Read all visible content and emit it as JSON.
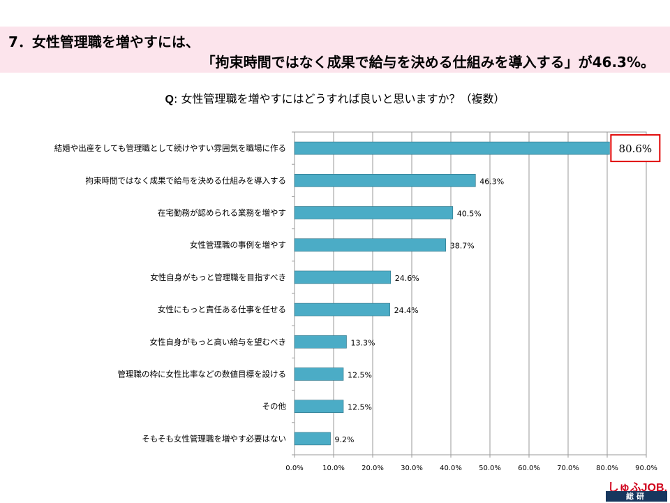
{
  "header": {
    "line1": "7．女性管理職を増やすには、",
    "line2": "「拘束時間ではなく成果で給与を決める仕組みを導入する」が46.3%。"
  },
  "question": {
    "prefix": "Q",
    "text": ": 女性管理職を増やすにはどうすれば良いと思いますか？（複数）"
  },
  "chart_data": {
    "type": "bar",
    "orientation": "horizontal",
    "categories": [
      "結婚や出産をしても管理職として続けやすい雰囲気を職場に作る",
      "拘束時間ではなく成果で給与を決める仕組みを導入する",
      "在宅勤務が認められる業務を増やす",
      "女性管理職の事例を増やす",
      "女性自身がもっと管理職を目指すべき",
      "女性にもっと責任ある仕事を任せる",
      "女性自身がもっと高い給与を望むべき",
      "管理職の枠に女性比率などの数値目標を設ける",
      "その他",
      "そもそも女性管理職を増やす必要はない"
    ],
    "values": [
      80.6,
      46.3,
      40.5,
      38.7,
      24.6,
      24.4,
      13.3,
      12.5,
      12.5,
      9.2
    ],
    "data_labels": [
      "80.6%",
      "46.3%",
      "40.5%",
      "38.7%",
      "24.6%",
      "24.4%",
      "13.3%",
      "12.5%",
      "12.5%",
      "9.2%"
    ],
    "x_ticks": [
      0,
      10,
      20,
      30,
      40,
      50,
      60,
      70,
      80,
      90
    ],
    "x_tick_labels": [
      "0.0%",
      "10.0%",
      "20.0%",
      "30.0%",
      "40.0%",
      "50.0%",
      "60.0%",
      "70.0%",
      "80.0%",
      "90.0%"
    ],
    "xlim": [
      0,
      90
    ],
    "bar_color": "#4bacc6",
    "highlight_color": "#e00000",
    "highlight_index": 0,
    "grid": true
  },
  "logo": {
    "top": "しゅふJOB.",
    "bottom": "総研"
  }
}
